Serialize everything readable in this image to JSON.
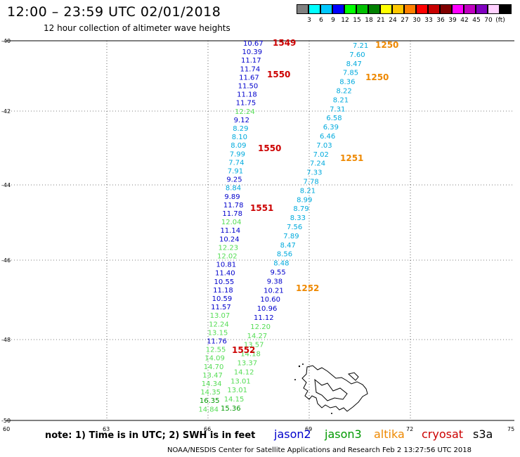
{
  "title": "12:00 – 23:59 UTC 02/01/2018",
  "subtitle": "12 hour collection of altimeter wave heights",
  "colorbar": {
    "colors": [
      "#808080",
      "#00ffff",
      "#00c8ff",
      "#0000ff",
      "#00ff00",
      "#00c000",
      "#008000",
      "#ffff00",
      "#ffc800",
      "#ff8000",
      "#ff0000",
      "#c80000",
      "#800000",
      "#ff00ff",
      "#c000c0",
      "#8000c0",
      "#ffd0ff",
      "#000000"
    ],
    "labels": [
      "3",
      "6",
      "9",
      "12",
      "15",
      "18",
      "21",
      "24",
      "27",
      "30",
      "33",
      "36",
      "39",
      "42",
      "45",
      "70",
      "(ft)"
    ]
  },
  "axes": {
    "lat_labels": [
      "-40",
      "-42",
      "-44",
      "-46",
      "-48",
      "-50"
    ],
    "lon_labels": [
      "60",
      "63",
      "66",
      "69",
      "72",
      "75"
    ]
  },
  "colors": {
    "jason2": "#0000cc",
    "jason3": "#009900",
    "altika": "#ee8800",
    "cryosat": "#cc0000",
    "s3a": "#000000",
    "light_blue": "#00aadd",
    "light_green": "#55dd55"
  },
  "track_west": [
    {
      "v": "10.67",
      "c": "#0000cc"
    },
    {
      "v": "10.39",
      "c": "#0000cc"
    },
    {
      "v": "11.17",
      "c": "#0000cc"
    },
    {
      "v": "11.74",
      "c": "#0000cc"
    },
    {
      "v": "11.67",
      "c": "#0000cc"
    },
    {
      "v": "11.50",
      "c": "#0000cc"
    },
    {
      "v": "11.18",
      "c": "#0000cc"
    },
    {
      "v": "11.75",
      "c": "#0000cc"
    },
    {
      "v": "12.24",
      "c": "#55dd55"
    },
    {
      "v": "9.12",
      "c": "#0000cc"
    },
    {
      "v": "8.29",
      "c": "#00aadd"
    },
    {
      "v": "8.10",
      "c": "#00aadd"
    },
    {
      "v": "8.09",
      "c": "#00aadd"
    },
    {
      "v": "7.99",
      "c": "#00aadd"
    },
    {
      "v": "7.74",
      "c": "#00aadd"
    },
    {
      "v": "7.91",
      "c": "#00aadd"
    },
    {
      "v": "9.25",
      "c": "#0000cc"
    },
    {
      "v": "8.84",
      "c": "#00aadd"
    },
    {
      "v": "9.89",
      "c": "#0000cc"
    },
    {
      "v": "11.78",
      "c": "#0000cc"
    },
    {
      "v": "11.78",
      "c": "#0000cc"
    },
    {
      "v": "12.04",
      "c": "#55dd55"
    },
    {
      "v": "11.14",
      "c": "#0000cc"
    },
    {
      "v": "10.24",
      "c": "#0000cc"
    },
    {
      "v": "12.23",
      "c": "#55dd55"
    },
    {
      "v": "12.02",
      "c": "#55dd55"
    },
    {
      "v": "10.81",
      "c": "#0000cc"
    },
    {
      "v": "11.40",
      "c": "#0000cc"
    },
    {
      "v": "10.55",
      "c": "#0000cc"
    },
    {
      "v": "11.18",
      "c": "#0000cc"
    },
    {
      "v": "10.59",
      "c": "#0000cc"
    },
    {
      "v": "11.57",
      "c": "#0000cc"
    },
    {
      "v": "13.07",
      "c": "#55dd55"
    },
    {
      "v": "12.24",
      "c": "#55dd55"
    },
    {
      "v": "13.15",
      "c": "#55dd55"
    },
    {
      "v": "11.76",
      "c": "#0000cc"
    },
    {
      "v": "12.55",
      "c": "#55dd55"
    },
    {
      "v": "14.09",
      "c": "#55dd55"
    },
    {
      "v": "14.70",
      "c": "#55dd55"
    },
    {
      "v": "13.47",
      "c": "#55dd55"
    },
    {
      "v": "14.34",
      "c": "#55dd55"
    },
    {
      "v": "14.35",
      "c": "#55dd55"
    },
    {
      "v": "16.35",
      "c": "#009900"
    },
    {
      "v": "14.84",
      "c": "#55dd55"
    }
  ],
  "track_east": [
    {
      "v": "7.21",
      "c": "#00aadd"
    },
    {
      "v": "7.60",
      "c": "#00aadd"
    },
    {
      "v": "8.47",
      "c": "#00aadd"
    },
    {
      "v": "7.85",
      "c": "#00aadd"
    },
    {
      "v": "8.36",
      "c": "#00aadd"
    },
    {
      "v": "8.22",
      "c": "#00aadd"
    },
    {
      "v": "8.21",
      "c": "#00aadd"
    },
    {
      "v": "7.31",
      "c": "#00aadd"
    },
    {
      "v": "6.58",
      "c": "#00aadd"
    },
    {
      "v": "6.39",
      "c": "#00aadd"
    },
    {
      "v": "6.46",
      "c": "#00aadd"
    },
    {
      "v": "7.03",
      "c": "#00aadd"
    },
    {
      "v": "7.02",
      "c": "#00aadd"
    },
    {
      "v": "7.24",
      "c": "#00aadd"
    },
    {
      "v": "7.33",
      "c": "#00aadd"
    },
    {
      "v": "7.78",
      "c": "#00aadd"
    },
    {
      "v": "8.21",
      "c": "#00aadd"
    },
    {
      "v": "8.99",
      "c": "#00aadd"
    },
    {
      "v": "8.79",
      "c": "#00aadd"
    },
    {
      "v": "8.33",
      "c": "#00aadd"
    },
    {
      "v": "7.56",
      "c": "#00aadd"
    },
    {
      "v": "7.89",
      "c": "#00aadd"
    },
    {
      "v": "8.47",
      "c": "#00aadd"
    },
    {
      "v": "8.56",
      "c": "#00aadd"
    },
    {
      "v": "8.48",
      "c": "#00aadd"
    },
    {
      "v": "9.55",
      "c": "#0000cc"
    },
    {
      "v": "9.38",
      "c": "#0000cc"
    },
    {
      "v": "10.21",
      "c": "#0000cc"
    },
    {
      "v": "10.60",
      "c": "#0000cc"
    },
    {
      "v": "10.96",
      "c": "#0000cc"
    },
    {
      "v": "11.12",
      "c": "#0000cc"
    },
    {
      "v": "12.20",
      "c": "#55dd55"
    },
    {
      "v": "14.27",
      "c": "#55dd55"
    },
    {
      "v": "13.57",
      "c": "#55dd55"
    },
    {
      "v": "14.18",
      "c": "#55dd55"
    },
    {
      "v": "13.37",
      "c": "#55dd55"
    },
    {
      "v": "14.12",
      "c": "#55dd55"
    },
    {
      "v": "13.01",
      "c": "#55dd55"
    },
    {
      "v": "13.01",
      "c": "#55dd55"
    },
    {
      "v": "14.15",
      "c": "#55dd55"
    },
    {
      "v": "15.36",
      "c": "#009900"
    }
  ],
  "orbits": [
    {
      "v": "1549",
      "c": "#cc0000"
    },
    {
      "v": "1550",
      "c": "#cc0000"
    },
    {
      "v": "1550",
      "c": "#cc0000"
    },
    {
      "v": "1551",
      "c": "#cc0000"
    },
    {
      "v": "1552",
      "c": "#cc0000"
    },
    {
      "v": "1250",
      "c": "#ee8800"
    },
    {
      "v": "1250",
      "c": "#ee8800"
    },
    {
      "v": "1251",
      "c": "#ee8800"
    },
    {
      "v": "1252",
      "c": "#ee8800"
    }
  ],
  "note": "note:  1) Time is in UTC;  2) SWH is in feet",
  "legend": {
    "jason2": "jason2",
    "jason3": "jason3",
    "altika": "altika",
    "cryosat": "cryosat",
    "s3a": "s3a"
  },
  "credit": "NOAA/NESDIS Center for Satellite Applications and Research     Feb  2 13:27:56 UTC 2018"
}
